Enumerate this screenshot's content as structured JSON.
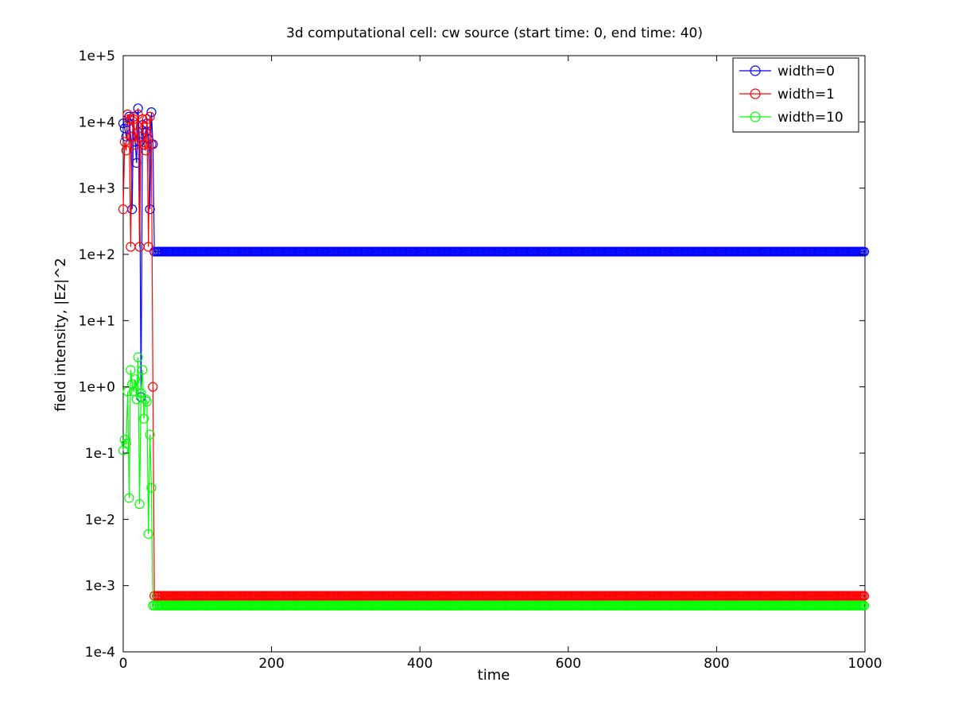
{
  "chart_data": {
    "type": "line",
    "title": "3d computational cell: cw source (start time: 0, end time: 40)",
    "xlabel": "time",
    "ylabel": "field intensity, |Ez|^2",
    "xlim": [
      0,
      1000
    ],
    "ylim": [
      0.0001,
      100000
    ],
    "yscale": "log",
    "x_ticks": [
      0,
      200,
      400,
      600,
      800,
      1000
    ],
    "x_tick_labels": [
      "0",
      "200",
      "400",
      "600",
      "800",
      "1000"
    ],
    "y_ticks": [
      0.0001,
      0.001,
      0.01,
      0.1,
      1,
      10,
      100,
      1000,
      10000,
      100000
    ],
    "y_tick_labels": [
      "1e-4",
      "1e-3",
      "1e-2",
      "1e-1",
      "1e+0",
      "1e+1",
      "1e+2",
      "1e+3",
      "1e+4",
      "1e+5"
    ],
    "grid": false,
    "legend_position": "top-right",
    "marker": "circle",
    "series": [
      {
        "name": "width=0",
        "color": "#0000ff",
        "x": [
          0,
          2,
          4,
          6,
          8,
          10,
          12,
          14,
          16,
          18,
          20,
          22,
          24,
          26,
          28,
          30,
          32,
          34,
          36,
          38,
          40,
          42
        ],
        "y": [
          9500,
          8000,
          6000,
          10000,
          12000,
          6000,
          480,
          12000,
          5000,
          2400,
          16000,
          5000,
          0.7,
          9000,
          4500,
          7000,
          9500,
          5500,
          480,
          14000,
          4600,
          110
        ],
        "steady_from": 45,
        "steady_to": 1000,
        "steady_step": 2,
        "steady_value": 110
      },
      {
        "name": "width=1",
        "color": "#ff0000",
        "x": [
          0,
          2,
          4,
          6,
          8,
          10,
          12,
          14,
          16,
          18,
          20,
          22,
          24,
          26,
          28,
          30,
          32,
          34,
          36,
          38,
          40,
          42
        ],
        "y": [
          480,
          5000,
          3700,
          13000,
          11000,
          130,
          6000,
          11000,
          4500,
          9000,
          13000,
          130,
          6000,
          11000,
          4500,
          3700,
          11000,
          130,
          12000,
          4600,
          1,
          0.0007
        ],
        "steady_from": 45,
        "steady_to": 1000,
        "steady_step": 2,
        "steady_value": 0.0007
      },
      {
        "name": "width=10",
        "color": "#00ff00",
        "x": [
          0,
          2,
          4,
          6,
          8,
          10,
          12,
          14,
          16,
          18,
          20,
          22,
          24,
          26,
          28,
          30,
          32,
          34,
          36,
          38,
          40,
          42
        ],
        "y": [
          0.11,
          0.16,
          0.14,
          0.85,
          0.021,
          1.8,
          1.1,
          0.85,
          1.3,
          0.65,
          2.8,
          0.017,
          0.8,
          1.8,
          0.33,
          0.65,
          0.6,
          0.006,
          0.19,
          0.03,
          0.0005,
          0.0005
        ],
        "steady_from": 45,
        "steady_to": 1000,
        "steady_step": 2,
        "steady_value": 0.0005
      }
    ]
  }
}
